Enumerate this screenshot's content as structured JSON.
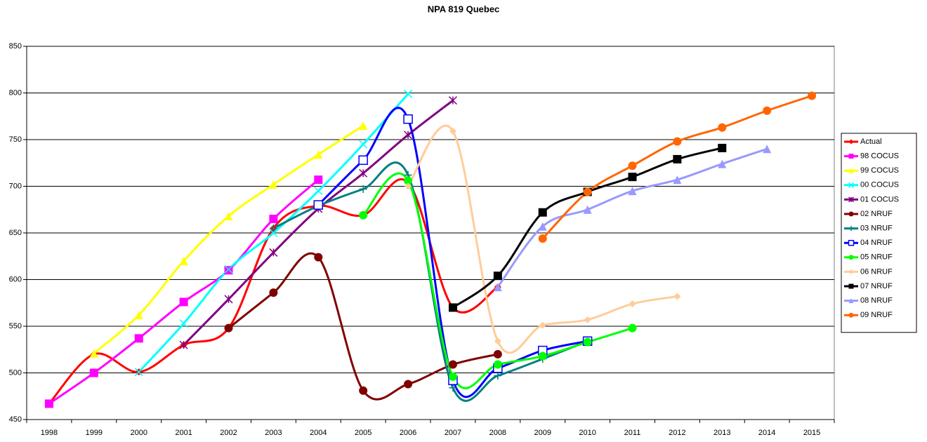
{
  "chart_data": {
    "type": "line",
    "title": "NPA 819 Quebec",
    "categories": [
      "1998",
      "1999",
      "2000",
      "2001",
      "2002",
      "2003",
      "2004",
      "2005",
      "2006",
      "2007",
      "2008",
      "2009",
      "2010",
      "2011",
      "2012",
      "2013",
      "2014",
      "2015"
    ],
    "ylim": [
      450,
      850
    ],
    "yticks": [
      450,
      500,
      550,
      600,
      650,
      700,
      750,
      800,
      850
    ],
    "grid": true,
    "smooth": true,
    "legend": "right",
    "series": [
      {
        "name": "Actual",
        "color": "#ff0000",
        "marker": "diamond",
        "values": [
          467,
          520,
          501,
          530,
          548,
          655,
          679,
          669,
          704,
          570,
          592,
          null,
          null,
          null,
          null,
          null,
          null,
          null
        ]
      },
      {
        "name": "98 COCUS",
        "color": "#ff00ff",
        "marker": "square",
        "values": [
          467,
          500,
          537,
          576,
          610,
          665,
          707,
          null,
          null,
          null,
          null,
          null,
          null,
          null,
          null,
          null,
          null,
          null
        ]
      },
      {
        "name": "99 COCUS",
        "color": "#ffff00",
        "marker": "triangle",
        "values": [
          null,
          521,
          562,
          620,
          668,
          702,
          734,
          765,
          null,
          null,
          null,
          null,
          null,
          null,
          null,
          null,
          null,
          null
        ]
      },
      {
        "name": "00 COCUS",
        "color": "#00ffff",
        "marker": "x",
        "values": [
          null,
          null,
          501,
          553,
          611,
          650,
          695,
          745,
          799,
          null,
          null,
          null,
          null,
          null,
          null,
          null,
          null,
          null
        ]
      },
      {
        "name": "01 COCUS",
        "color": "#800080",
        "marker": "star",
        "values": [
          null,
          null,
          null,
          530,
          579,
          629,
          676,
          714,
          755,
          792,
          null,
          null,
          null,
          null,
          null,
          null,
          null,
          null
        ]
      },
      {
        "name": "02 NRUF",
        "color": "#800000",
        "marker": "circle",
        "values": [
          null,
          null,
          null,
          null,
          548,
          586,
          624,
          481,
          488,
          509,
          520,
          null,
          null,
          null,
          null,
          null,
          null,
          null
        ]
      },
      {
        "name": "03 NRUF",
        "color": "#008080",
        "marker": "plus",
        "values": [
          null,
          null,
          null,
          null,
          null,
          655,
          679,
          697,
          712,
          484,
          497,
          515,
          534,
          null,
          null,
          null,
          null,
          null
        ]
      },
      {
        "name": "04 NRUF",
        "color": "#0000ff",
        "marker": "open-square",
        "values": [
          null,
          null,
          null,
          null,
          null,
          null,
          680,
          728,
          772,
          492,
          505,
          524,
          534,
          null,
          null,
          null,
          null,
          null
        ]
      },
      {
        "name": "05 NRUF",
        "color": "#00ff00",
        "marker": "circle",
        "values": [
          null,
          null,
          null,
          null,
          null,
          null,
          null,
          669,
          706,
          496,
          509,
          518,
          533,
          548,
          null,
          null,
          null,
          null
        ]
      },
      {
        "name": "06 NRUF",
        "color": "#ffcc99",
        "marker": "diamond",
        "values": [
          null,
          null,
          null,
          null,
          null,
          null,
          null,
          null,
          700,
          759,
          534,
          551,
          557,
          574,
          582,
          null,
          null,
          null
        ]
      },
      {
        "name": "07 NRUF",
        "color": "#000000",
        "marker": "square",
        "values": [
          null,
          null,
          null,
          null,
          null,
          null,
          null,
          null,
          null,
          570,
          604,
          672,
          694,
          710,
          729,
          741,
          null,
          null
        ]
      },
      {
        "name": "08 NRUF",
        "color": "#9999ff",
        "marker": "triangle",
        "values": [
          null,
          null,
          null,
          null,
          null,
          null,
          null,
          null,
          null,
          null,
          592,
          657,
          675,
          695,
          707,
          724,
          740,
          null
        ]
      },
      {
        "name": "09 NRUF",
        "color": "#ff6600",
        "marker": "circle",
        "values": [
          null,
          null,
          null,
          null,
          null,
          null,
          null,
          null,
          null,
          null,
          null,
          644,
          694,
          722,
          748,
          763,
          781,
          797
        ]
      }
    ]
  }
}
